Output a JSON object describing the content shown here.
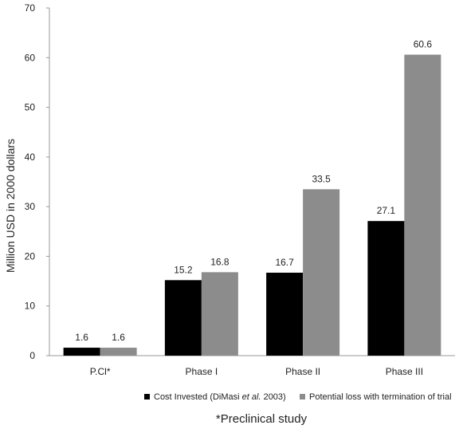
{
  "chart_data": {
    "type": "bar",
    "categories": [
      "P.Cl*",
      "Phase I",
      "Phase II",
      "Phase III"
    ],
    "series": [
      {
        "name_parts": [
          "Cost Invested (DiMasi ",
          "et al.",
          " 2003)"
        ],
        "values": [
          1.6,
          15.2,
          16.7,
          27.1
        ],
        "color": "#000000"
      },
      {
        "name": "Potential loss with termination of trial",
        "values": [
          1.6,
          16.8,
          33.5,
          60.6
        ],
        "color": "#8c8c8c"
      }
    ],
    "ylabel": "Million USD in 2000 dollars",
    "ylim": [
      0,
      70
    ],
    "yticks": [
      0,
      10,
      20,
      30,
      40,
      50,
      60,
      70
    ],
    "data_labels": [
      [
        "1.6",
        "15.2",
        "16.7",
        "27.1"
      ],
      [
        "1.6",
        "16.8",
        "33.5",
        "60.6"
      ]
    ],
    "grid": false,
    "legend_position": "bottom",
    "footnote": "*Preclinical study"
  }
}
